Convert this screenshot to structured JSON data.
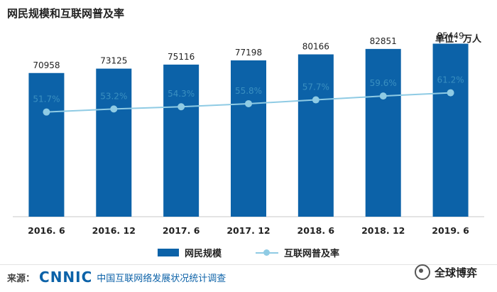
{
  "title": "网民规模和互联网普及率",
  "unit_label": "单位：万人",
  "chart_data": {
    "type": "bar",
    "categories": [
      "2016. 6",
      "2016. 12",
      "2017. 6",
      "2017. 12",
      "2018. 6",
      "2018. 12",
      "2019. 6"
    ],
    "series": [
      {
        "name": "网民规模",
        "type": "bar",
        "values": [
          70958,
          73125,
          75116,
          77198,
          80166,
          82851,
          85449
        ],
        "labels": [
          "70958",
          "73125",
          "75116",
          "77198",
          "80166",
          "82851",
          "85449"
        ],
        "color": "#0c62a8"
      },
      {
        "name": "互联网普及率",
        "type": "line",
        "values": [
          51.7,
          53.2,
          54.3,
          55.8,
          57.7,
          59.6,
          61.2
        ],
        "labels": [
          "51.7%",
          "53.2%",
          "54.3%",
          "55.8%",
          "57.7%",
          "59.6%",
          "61.2%"
        ],
        "color": "#8fcbe4"
      }
    ],
    "ylim": [
      0,
      100000
    ],
    "ylim_secondary": [
      0,
      100
    ],
    "grid": false,
    "legend": "bottom-center"
  },
  "legend": {
    "bar_label": "网民规模",
    "line_label": "互联网普及率"
  },
  "source": {
    "prefix": "来源：",
    "logo": "CNNIC",
    "text": "中国互联网络发展状况统计调查"
  },
  "brand": {
    "name": "全球博弈",
    "icon": "wechat-icon"
  }
}
